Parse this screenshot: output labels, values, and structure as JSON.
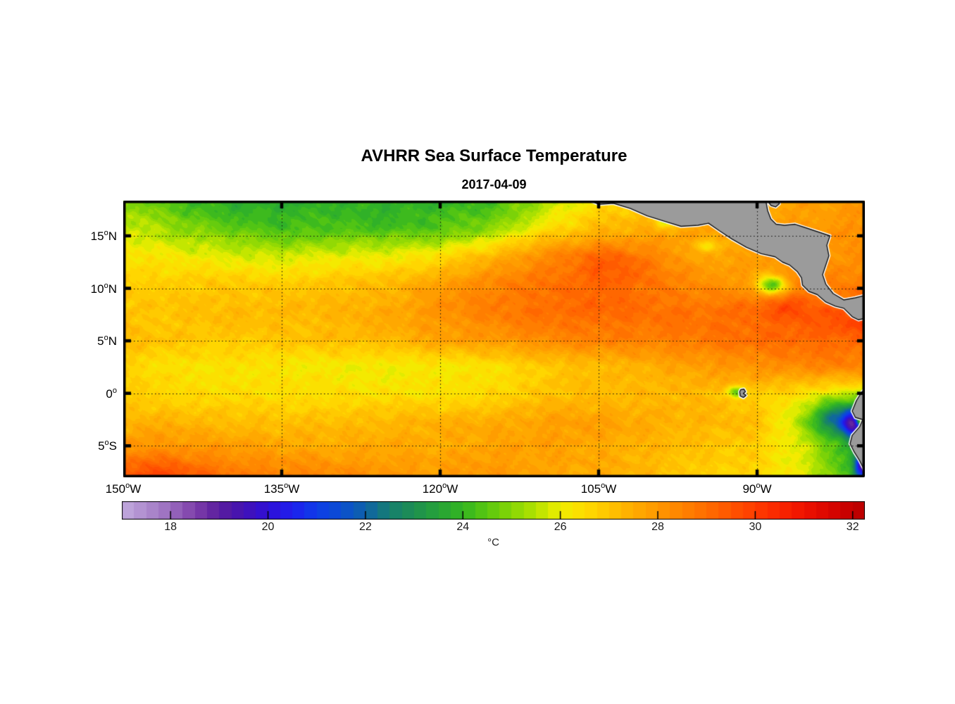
{
  "figure": {
    "title": "AVHRR Sea Surface Temperature",
    "subtitle": "2017-04-09",
    "background": "#ffffff"
  },
  "map": {
    "extent": {
      "lon_min": -150,
      "lon_max": -79.8,
      "lat_min": -8,
      "lat_max": 18.35
    },
    "land_color": "#9b9b9b",
    "coast_color": "#101010",
    "coast_halo": "#ffffff",
    "grid_color": "#111111",
    "lat_grid_lines": [
      15,
      10,
      5,
      0,
      -5
    ],
    "lon_grid_lines": [
      -135,
      -120,
      -105,
      -90
    ],
    "axis": {
      "lat_ticks": [
        {
          "value": 15,
          "label": "15",
          "deg": "o",
          "suffix": "N"
        },
        {
          "value": 10,
          "label": "10",
          "deg": "o",
          "suffix": "N"
        },
        {
          "value": 5,
          "label": "5",
          "deg": "o",
          "suffix": "N"
        },
        {
          "value": 0,
          "label": "0",
          "deg": "o",
          "suffix": ""
        },
        {
          "value": -5,
          "label": "5",
          "deg": "o",
          "suffix": "S"
        }
      ],
      "lon_ticks": [
        {
          "value": -150,
          "label": "150",
          "deg": "o",
          "suffix": "W"
        },
        {
          "value": -135,
          "label": "135",
          "deg": "o",
          "suffix": "W"
        },
        {
          "value": -120,
          "label": "120",
          "deg": "o",
          "suffix": "W"
        },
        {
          "value": -105,
          "label": "105",
          "deg": "o",
          "suffix": "W"
        },
        {
          "value": -90,
          "label": "90",
          "deg": "o",
          "suffix": "W"
        }
      ]
    }
  },
  "colorbar": {
    "min": 17,
    "max": 32.25,
    "step": 0.25,
    "ticks": [
      18,
      20,
      22,
      24,
      26,
      28,
      30,
      32
    ],
    "unit": "°C",
    "stops": [
      [
        17.0,
        "#c3abde"
      ],
      [
        17.5,
        "#ae8cce"
      ],
      [
        18.0,
        "#9a6cbe"
      ],
      [
        18.5,
        "#7e3faa"
      ],
      [
        19.0,
        "#5a1d9e"
      ],
      [
        19.5,
        "#4312b4"
      ],
      [
        20.0,
        "#2f10d8"
      ],
      [
        20.5,
        "#1f1fee"
      ],
      [
        21.0,
        "#0e3de8"
      ],
      [
        21.5,
        "#0a4ed2"
      ],
      [
        22.0,
        "#0e62a8"
      ],
      [
        22.5,
        "#167f70"
      ],
      [
        23.0,
        "#1e9050"
      ],
      [
        23.5,
        "#27a338"
      ],
      [
        24.0,
        "#33b622"
      ],
      [
        24.5,
        "#5bc810"
      ],
      [
        25.0,
        "#86d606"
      ],
      [
        25.5,
        "#b4e300"
      ],
      [
        26.0,
        "#f0ee00"
      ],
      [
        26.5,
        "#ffdc00"
      ],
      [
        27.0,
        "#ffc400"
      ],
      [
        27.5,
        "#ffad00"
      ],
      [
        28.0,
        "#ff9800"
      ],
      [
        28.5,
        "#ff8300"
      ],
      [
        29.0,
        "#ff6d00"
      ],
      [
        29.5,
        "#ff5500"
      ],
      [
        30.0,
        "#ff3c00"
      ],
      [
        30.5,
        "#fa2600"
      ],
      [
        31.0,
        "#ee1300"
      ],
      [
        31.5,
        "#db0600"
      ],
      [
        32.0,
        "#c40000"
      ],
      [
        32.25,
        "#b80000"
      ]
    ]
  },
  "chart_data": {
    "type": "heatmap",
    "title": "AVHRR Sea Surface Temperature",
    "date": "2017-04-09",
    "units": "°C",
    "value_range": [
      17,
      32.25
    ],
    "lon": [
      -150,
      -145,
      -140,
      -135,
      -130,
      -125,
      -120,
      -115,
      -110,
      -105,
      -100,
      -95,
      -90,
      -85,
      -80
    ],
    "lat": [
      18.35,
      15.715,
      13.08,
      10.445,
      7.81,
      5.175,
      2.54,
      -0.095,
      -2.73,
      -5.365,
      -8.0
    ],
    "sst": [
      [
        25.0,
        24.2,
        23.7,
        23.6,
        23.9,
        23.8,
        23.8,
        24.1,
        25.3,
        26.3,
        27.0,
        27.3,
        27.6,
        27.8,
        27.9
      ],
      [
        25.8,
        25.1,
        24.6,
        24.2,
        24.3,
        24.2,
        24.4,
        25.0,
        26.4,
        27.2,
        27.5,
        27.7,
        27.9,
        28.0,
        28.2
      ],
      [
        26.4,
        26.1,
        25.9,
        25.7,
        25.9,
        26.1,
        26.4,
        27.3,
        28.4,
        28.9,
        28.4,
        27.7,
        27.8,
        28.0,
        28.2
      ],
      [
        26.9,
        26.8,
        26.9,
        26.9,
        27.0,
        27.2,
        27.9,
        28.4,
        28.9,
        29.1,
        28.7,
        28.3,
        27.9,
        28.5,
        28.6
      ],
      [
        27.0,
        27.0,
        27.2,
        27.3,
        27.3,
        27.6,
        28.2,
        28.6,
        29.0,
        29.2,
        28.9,
        28.9,
        29.2,
        29.4,
        29.5
      ],
      [
        27.2,
        27.0,
        26.9,
        27.0,
        27.2,
        27.3,
        27.8,
        28.0,
        28.4,
        28.6,
        28.6,
        28.8,
        29.0,
        29.2,
        29.0
      ],
      [
        26.6,
        26.4,
        26.3,
        26.2,
        26.2,
        26.0,
        26.2,
        26.4,
        26.8,
        27.2,
        27.5,
        27.8,
        28.2,
        28.4,
        28.5
      ],
      [
        26.8,
        26.6,
        26.5,
        26.4,
        26.5,
        26.4,
        26.3,
        26.6,
        27.0,
        27.2,
        27.3,
        27.2,
        26.8,
        26.4,
        25.6
      ],
      [
        27.3,
        27.4,
        27.2,
        27.0,
        27.2,
        27.3,
        27.4,
        27.6,
        27.8,
        27.8,
        27.6,
        27.3,
        27.1,
        25.2,
        23.0
      ],
      [
        28.3,
        28.2,
        28.0,
        27.8,
        27.6,
        27.7,
        27.6,
        27.8,
        27.8,
        27.6,
        27.3,
        27.0,
        26.8,
        25.6,
        23.2
      ],
      [
        29.5,
        29.3,
        29.0,
        28.6,
        28.4,
        28.2,
        27.9,
        28.0,
        27.8,
        27.5,
        27.2,
        26.8,
        26.5,
        25.8,
        23.8
      ]
    ],
    "anomalies": [
      {
        "lon": -92.0,
        "lat": 0.15,
        "sx": 0.8,
        "sy": 0.55,
        "delta": -2.6
      },
      {
        "lon": -88.6,
        "lat": 10.3,
        "sx": 1.3,
        "sy": 0.9,
        "delta": -3.8
      },
      {
        "lon": -98.7,
        "lat": 16.3,
        "sx": 1.0,
        "sy": 0.55,
        "delta": -1.6
      },
      {
        "lon": -94.7,
        "lat": 14.0,
        "sx": 1.1,
        "sy": 0.6,
        "delta": -1.5
      },
      {
        "lon": -82.5,
        "lat": -2.2,
        "sx": 2.4,
        "sy": 1.7,
        "delta": -2.2
      },
      {
        "lon": -81.0,
        "lat": -2.9,
        "sx": 0.9,
        "sy": 1.2,
        "delta": -3.6
      },
      {
        "lon": -80.1,
        "lat": -6.9,
        "sx": 0.7,
        "sy": 1.2,
        "delta": -4.2
      },
      {
        "lon": -80.15,
        "lat": -2.55,
        "sx": 0.5,
        "sy": 0.5,
        "delta": 4.5
      },
      {
        "lon": -80.6,
        "lat": 6.6,
        "sx": 1.9,
        "sy": 1.4,
        "delta": 0.6
      },
      {
        "lon": -103.5,
        "lat": 12.0,
        "sx": 3.5,
        "sy": 1.7,
        "delta": 0.5
      },
      {
        "lon": -146.5,
        "lat": -7.8,
        "sx": 3.5,
        "sy": 1.6,
        "delta": 0.5
      },
      {
        "lon": -87.0,
        "lat": 8.3,
        "sx": 1.7,
        "sy": 1.0,
        "delta": 0.6
      }
    ],
    "land": [
      [
        [
          -106.2,
          18.5
        ],
        [
          -105.0,
          18.0
        ],
        [
          -103.6,
          18.1
        ],
        [
          -102.0,
          17.6
        ],
        [
          -100.4,
          16.9
        ],
        [
          -98.8,
          16.4
        ],
        [
          -97.2,
          15.9
        ],
        [
          -95.6,
          16.0
        ],
        [
          -94.6,
          16.2
        ],
        [
          -93.6,
          15.5
        ],
        [
          -92.4,
          14.7
        ],
        [
          -91.0,
          13.9
        ],
        [
          -89.6,
          13.3
        ],
        [
          -88.3,
          13.0
        ],
        [
          -87.6,
          12.5
        ],
        [
          -86.9,
          12.2
        ],
        [
          -86.2,
          11.6
        ],
        [
          -85.8,
          11.0
        ],
        [
          -85.7,
          10.3
        ],
        [
          -85.1,
          9.7
        ],
        [
          -84.3,
          9.4
        ],
        [
          -83.5,
          8.7
        ],
        [
          -82.6,
          8.3
        ],
        [
          -81.8,
          8.1
        ],
        [
          -81.0,
          7.3
        ],
        [
          -80.4,
          7.0
        ],
        [
          -79.5,
          7.2
        ],
        [
          -79.5,
          9.4
        ],
        [
          -80.7,
          9.1
        ],
        [
          -81.8,
          8.9
        ],
        [
          -82.8,
          9.5
        ],
        [
          -83.5,
          10.4
        ],
        [
          -83.8,
          11.3
        ],
        [
          -83.5,
          12.2
        ],
        [
          -83.2,
          13.1
        ],
        [
          -83.4,
          14.1
        ],
        [
          -83.1,
          15.0
        ],
        [
          -84.3,
          15.4
        ],
        [
          -85.5,
          15.8
        ],
        [
          -86.4,
          16.1
        ],
        [
          -87.4,
          16.0
        ],
        [
          -88.2,
          16.1
        ],
        [
          -88.7,
          16.6
        ],
        [
          -89.0,
          17.4
        ],
        [
          -89.2,
          18.5
        ]
      ],
      [
        [
          -88.85,
          18.5
        ],
        [
          -88.0,
          18.5
        ],
        [
          -87.9,
          18.05
        ],
        [
          -88.25,
          17.75
        ],
        [
          -88.7,
          17.9
        ],
        [
          -88.9,
          18.2
        ]
      ],
      [
        [
          -79.5,
          0.7
        ],
        [
          -80.1,
          0.1
        ],
        [
          -80.6,
          -0.7
        ],
        [
          -81.0,
          -1.7
        ],
        [
          -80.7,
          -2.3
        ],
        [
          -80.0,
          -2.5
        ],
        [
          -80.3,
          -3.2
        ],
        [
          -81.0,
          -4.0
        ],
        [
          -81.2,
          -4.8
        ],
        [
          -80.8,
          -5.6
        ],
        [
          -80.3,
          -6.4
        ],
        [
          -79.9,
          -7.2
        ],
        [
          -79.7,
          -8.2
        ],
        [
          -79.4,
          -8.2
        ],
        [
          -79.4,
          0.7
        ]
      ],
      [
        [
          -91.55,
          0.35
        ],
        [
          -91.25,
          0.4
        ],
        [
          -91.1,
          0.15
        ],
        [
          -91.3,
          0.0
        ],
        [
          -91.05,
          -0.2
        ],
        [
          -91.3,
          -0.4
        ],
        [
          -91.6,
          -0.25
        ],
        [
          -91.65,
          0.15
        ]
      ]
    ]
  }
}
